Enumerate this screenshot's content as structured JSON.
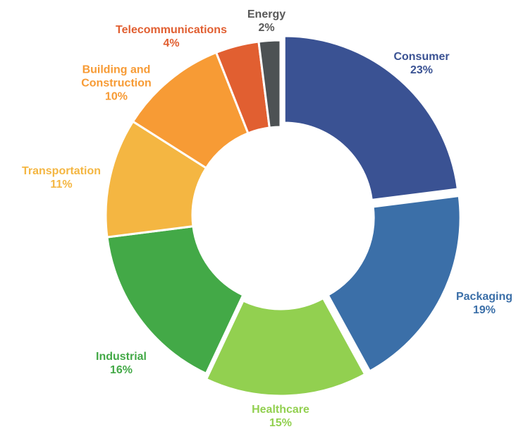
{
  "chart_data": {
    "type": "donut",
    "categories": [
      "Consumer",
      "Packaging",
      "Healthcare",
      "Industrial",
      "Transportation",
      "Building and Construction",
      "Telecommunications",
      "Energy"
    ],
    "values": [
      23,
      19,
      15,
      16,
      11,
      10,
      4,
      2
    ],
    "value_labels": [
      "23%",
      "19%",
      "15%",
      "16%",
      "11%",
      "10%",
      "4%",
      "2%"
    ],
    "colors": [
      "#3a5293",
      "#3b6fa8",
      "#92d050",
      "#43a947",
      "#f4b642",
      "#f79b35",
      "#e15f31",
      "#4d5254"
    ]
  }
}
